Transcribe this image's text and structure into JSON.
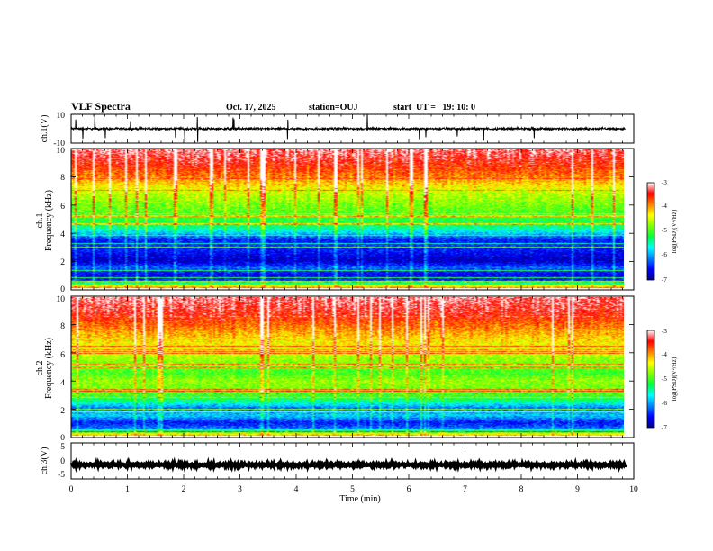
{
  "header": {
    "title": "VLF Spectra",
    "date": "Oct. 17, 2025",
    "station": "station=OUJ",
    "start": "start  UT =   19: 10: 0"
  },
  "colors": {
    "spectrogram_stops": [
      "#00008c",
      "#0000ff",
      "#0080ff",
      "#00ffff",
      "#00ff40",
      "#80ff00",
      "#ffff00",
      "#ff8000",
      "#ff0000",
      "#ffffff"
    ],
    "trace": "#000000"
  },
  "chart_data": [
    {
      "type": "line",
      "panel": "ch1-waveform",
      "ylabel": "ch.1(V)",
      "ylim": [
        -10,
        10
      ],
      "yticks": [
        "10",
        "-10"
      ],
      "xlim": [
        0,
        10
      ],
      "series": [
        {
          "baseline": 0,
          "noise_amplitude": 1.2,
          "spikes": true
        }
      ]
    },
    {
      "type": "heatmap",
      "panel": "ch1-spectrogram",
      "ylabel_line1": "ch.1",
      "ylabel_line2": "Frequency (kHz)",
      "ylim": [
        0,
        10
      ],
      "yticks": [
        "0",
        "2",
        "4",
        "6",
        "8",
        "10"
      ],
      "xlim": [
        0,
        9.85
      ],
      "colorbar": {
        "label": "log(PSD)(V²/Hz)",
        "range": [
          -7,
          -3
        ],
        "ticks": [
          "-3",
          "-4",
          "-5",
          "-6",
          "-7"
        ]
      },
      "profile": {
        "freq_khz": [
          0,
          0.3,
          0.6,
          1.0,
          1.5,
          2.0,
          2.5,
          3.0,
          3.5,
          4.0,
          4.5,
          5.0,
          6.0,
          7.0,
          8.0,
          9.0,
          10.0
        ],
        "log_psd": [
          -3.6,
          -4.9,
          -6.4,
          -6.6,
          -6.2,
          -6.8,
          -6.6,
          -6.4,
          -6.5,
          -5.8,
          -5.3,
          -5.1,
          -4.8,
          -4.5,
          -3.9,
          -3.5,
          -3.2
        ]
      }
    },
    {
      "type": "heatmap",
      "panel": "ch2-spectrogram",
      "ylabel_line1": "ch.2",
      "ylabel_line2": "Frequency (kHz)",
      "ylim": [
        0,
        10
      ],
      "yticks": [
        "0",
        "2",
        "4",
        "6",
        "8",
        "10"
      ],
      "xlim": [
        0,
        9.85
      ],
      "colorbar": {
        "label": "log(PSD)(V²/Hz)",
        "range": [
          -7,
          -3
        ],
        "ticks": [
          "-3",
          "-4",
          "-5",
          "-6",
          "-7"
        ]
      },
      "profile": {
        "freq_khz": [
          0,
          0.3,
          0.6,
          1.0,
          1.5,
          2.0,
          2.5,
          3.0,
          3.5,
          4.0,
          4.5,
          5.0,
          6.0,
          7.0,
          8.0,
          9.0,
          10.0
        ],
        "log_psd": [
          -3.8,
          -5.0,
          -6.2,
          -6.5,
          -5.8,
          -6.2,
          -5.4,
          -5.0,
          -4.8,
          -4.7,
          -5.0,
          -4.9,
          -4.5,
          -4.2,
          -3.8,
          -3.4,
          -3.2
        ]
      }
    },
    {
      "type": "line",
      "panel": "ch3-waveform",
      "ylabel": "ch.3(V)",
      "ylim": [
        -5,
        5
      ],
      "yticks": [
        "5",
        "0",
        "-5"
      ],
      "xlim": [
        0,
        10
      ],
      "series": [
        {
          "baseline": -1.1,
          "noise_amplitude": 0.35,
          "spikes": false
        }
      ]
    }
  ],
  "xaxis": {
    "label": "Time (min)",
    "ticks": [
      "0",
      "1",
      "2",
      "3",
      "4",
      "5",
      "6",
      "7",
      "8",
      "9",
      "10"
    ],
    "range": [
      0,
      10
    ]
  }
}
